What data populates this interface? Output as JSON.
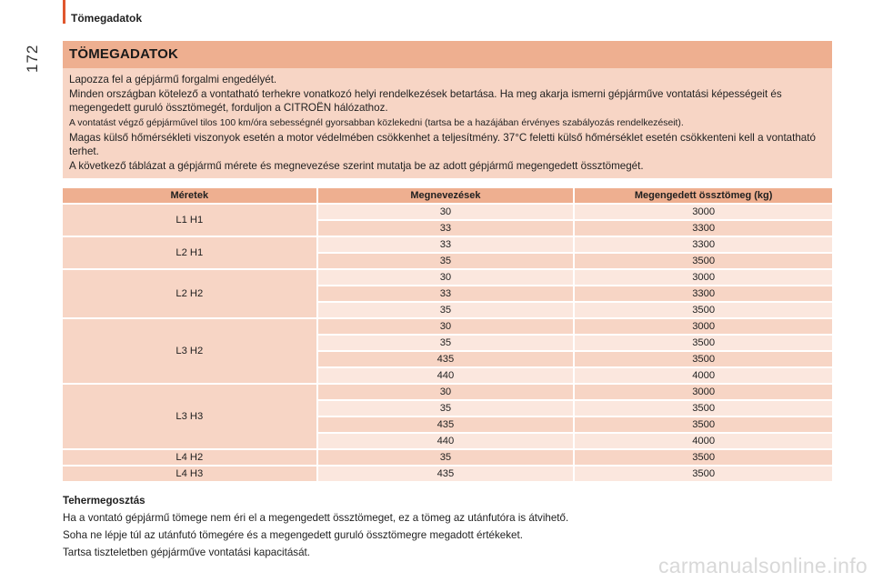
{
  "header": {
    "section_title": "Tömegadatok",
    "page_number": "172"
  },
  "info_box": {
    "title": "TÖMEGADATOK",
    "paragraphs": [
      "Lapozza fel a gépjármű forgalmi engedélyét.",
      "Minden országban kötelező a vontatható terhekre vonatkozó helyi rendelkezések betartása. Ha meg akarja ismerni gépjárműve vontatási képességeit és megengedett guruló össztömegét, forduljon a CITROËN hálózathoz.",
      "A vontatást végző gépjárművel tilos 100 km/óra sebességnél gyorsabban közlekedni (tartsa be a hazájában érvényes szabályozás rendelkezéseit).",
      "Magas külső hőmérsékleti viszonyok esetén a motor védelmében csökkenhet a teljesítmény. 37°C feletti külső hőmérséklet esetén csökkenteni kell a vontatható terhet.",
      "A következő táblázat a gépjármű mérete és megnevezése szerint mutatja be az adott gépjármű megengedett össztömegét."
    ]
  },
  "table": {
    "headers": [
      "Méretek",
      "Megnevezések",
      "Megengedett össztömeg (kg)"
    ],
    "groups": [
      {
        "dimension": "L1 H1",
        "rows": [
          [
            "30",
            "3000"
          ],
          [
            "33",
            "3300"
          ]
        ]
      },
      {
        "dimension": "L2 H1",
        "rows": [
          [
            "33",
            "3300"
          ],
          [
            "35",
            "3500"
          ]
        ]
      },
      {
        "dimension": "L2 H2",
        "rows": [
          [
            "30",
            "3000"
          ],
          [
            "33",
            "3300"
          ],
          [
            "35",
            "3500"
          ]
        ]
      },
      {
        "dimension": "L3 H2",
        "rows": [
          [
            "30",
            "3000"
          ],
          [
            "35",
            "3500"
          ],
          [
            "435",
            "3500"
          ],
          [
            "440",
            "4000"
          ]
        ]
      },
      {
        "dimension": "L3 H3",
        "rows": [
          [
            "30",
            "3000"
          ],
          [
            "35",
            "3500"
          ],
          [
            "435",
            "3500"
          ],
          [
            "440",
            "4000"
          ]
        ]
      },
      {
        "dimension": "L4 H2",
        "rows": [
          [
            "35",
            "3500"
          ]
        ]
      },
      {
        "dimension": "L4 H3",
        "rows": [
          [
            "435",
            "3500"
          ]
        ]
      }
    ]
  },
  "footer": {
    "title": "Tehermegosztás",
    "paragraphs": [
      "Ha a vontató gépjármű tömege nem éri el a megengedett össztömeget, ez a tömeg az utánfutóra is átvihető.",
      "Soha ne lépje túl az utánfutó tömegére és a megengedett guruló össztömegre megadott értékeket.",
      "Tartsa tiszteletben gépjárműve vontatási kapacitását."
    ]
  },
  "watermark": "carmanualsonline.info"
}
